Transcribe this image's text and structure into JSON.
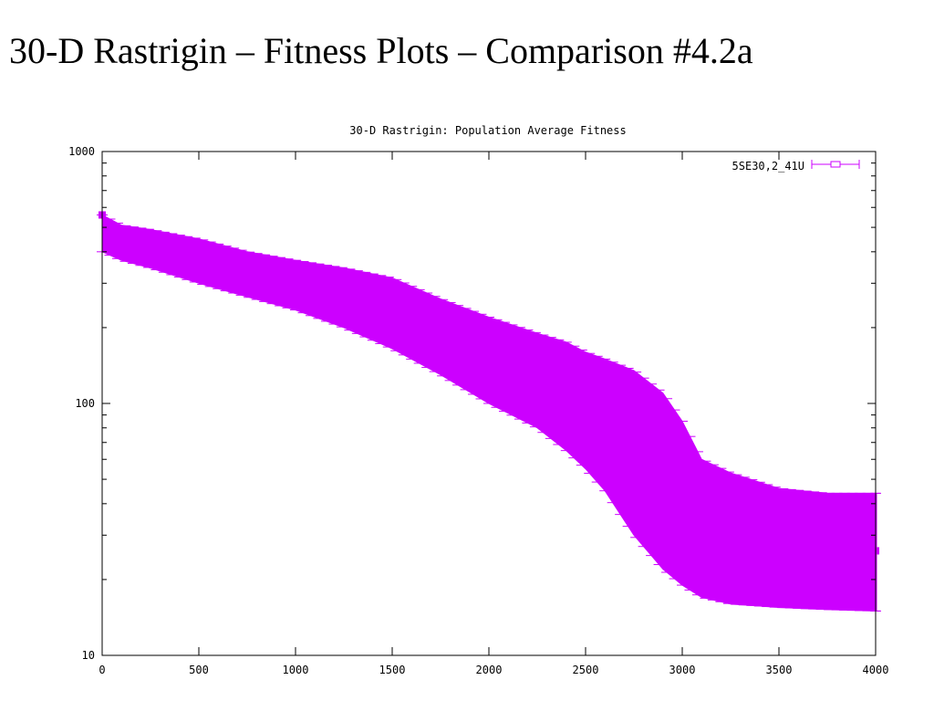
{
  "slide": {
    "title": "30-D Rastrigin – Fitness Plots – Comparison #4.2a"
  },
  "chart_data": {
    "type": "line",
    "title": "30-D Rastrigin: Population Average Fitness",
    "xlabel": "",
    "ylabel": "",
    "xlim": [
      0,
      4000
    ],
    "ylim": [
      10,
      1000
    ],
    "yscale": "log",
    "grid": false,
    "legend_position": "top-right",
    "error_bars": true,
    "x_ticks": [
      0,
      500,
      1000,
      1500,
      2000,
      2500,
      3000,
      3500,
      4000
    ],
    "x_tick_labels": [
      "0",
      "500",
      "1000",
      "1500",
      "2000",
      "2500",
      "3000",
      "3500",
      "4000"
    ],
    "y_ticks": [
      10,
      100,
      1000
    ],
    "y_tick_labels": [
      "10",
      "100",
      "1000"
    ],
    "series": [
      {
        "name": "5SE30,2_41U",
        "color": "#cc00ff",
        "x": [
          0,
          100,
          250,
          500,
          750,
          1000,
          1250,
          1500,
          1750,
          2000,
          2250,
          2400,
          2500,
          2600,
          2750,
          2900,
          3000,
          3100,
          3250,
          3500,
          3750,
          4000
        ],
        "upper": [
          560,
          510,
          490,
          450,
          400,
          370,
          345,
          315,
          260,
          220,
          190,
          175,
          160,
          150,
          135,
          110,
          85,
          60,
          53,
          46,
          44,
          44
        ],
        "lower": [
          400,
          370,
          345,
          300,
          265,
          235,
          200,
          165,
          130,
          100,
          80,
          65,
          55,
          45,
          30,
          22,
          19,
          17,
          16,
          15.5,
          15.2,
          15
        ],
        "final_value": 26
      }
    ]
  }
}
